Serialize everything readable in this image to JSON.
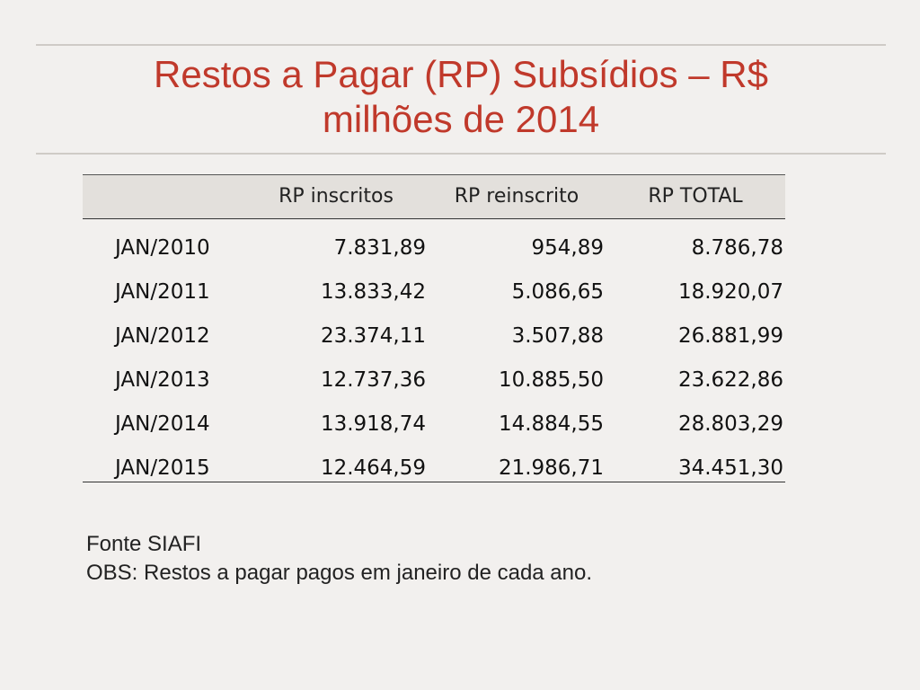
{
  "slide": {
    "title_line1": "Restos a Pagar (RP) Subsídios – R$",
    "title_line2": "milhões de 2014"
  },
  "table": {
    "headers": [
      "",
      "RP inscritos",
      "RP reinscrito",
      "RP TOTAL"
    ],
    "rows": [
      {
        "label": "JAN/2010",
        "rp_inscritos": "7.831,89",
        "rp_reinscrito": "954,89",
        "rp_total": "8.786,78"
      },
      {
        "label": "JAN/2011",
        "rp_inscritos": "13.833,42",
        "rp_reinscrito": "5.086,65",
        "rp_total": "18.920,07"
      },
      {
        "label": "JAN/2012",
        "rp_inscritos": "23.374,11",
        "rp_reinscrito": "3.507,88",
        "rp_total": "26.881,99"
      },
      {
        "label": "JAN/2013",
        "rp_inscritos": "12.737,36",
        "rp_reinscrito": "10.885,50",
        "rp_total": "23.622,86"
      },
      {
        "label": "JAN/2014",
        "rp_inscritos": "13.918,74",
        "rp_reinscrito": "14.884,55",
        "rp_total": "28.803,29"
      },
      {
        "label": "JAN/2015",
        "rp_inscritos": "12.464,59",
        "rp_reinscrito": "21.986,71",
        "rp_total": "34.451,30"
      }
    ]
  },
  "notes": {
    "source": "Fonte SIAFI",
    "obs": "OBS: Restos a pagar pagos em janeiro de cada ano."
  },
  "colors": {
    "title": "#c0392b",
    "background": "#f2f0ee",
    "header_fill": "#e3e0dc"
  }
}
